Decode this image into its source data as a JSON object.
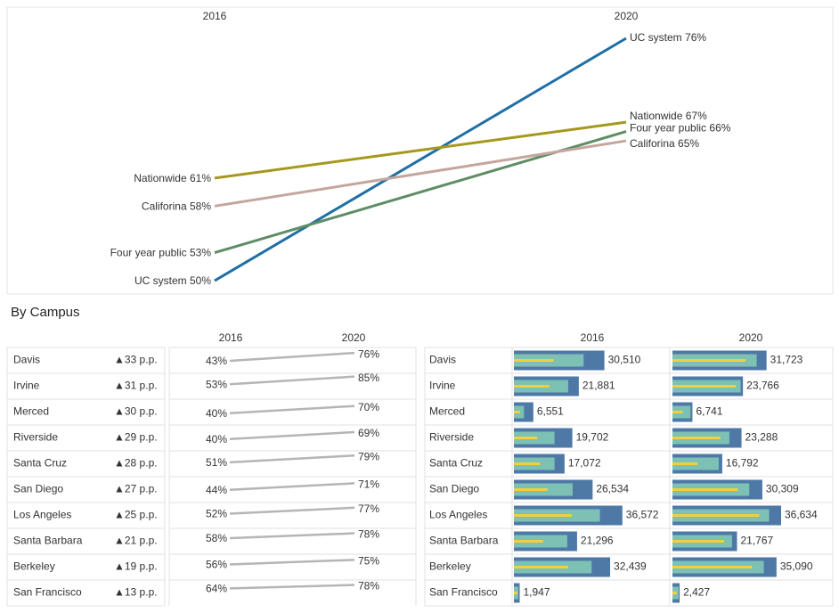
{
  "chart_data": [
    {
      "type": "line",
      "x": [
        "2016",
        "2020"
      ],
      "series": [
        {
          "name": "UC system",
          "color": "#1f6fa5",
          "values": [
            50,
            76
          ],
          "value_labels": [
            "50%",
            "76%"
          ]
        },
        {
          "name": "Nationwide",
          "color": "#a6981c",
          "values": [
            61,
            67
          ],
          "value_labels": [
            "61%",
            "67%"
          ]
        },
        {
          "name": "Four year public",
          "color": "#5e8d66",
          "values": [
            53,
            66
          ],
          "value_labels": [
            "53%",
            "66%"
          ]
        },
        {
          "name": "Califorina",
          "color": "#c4a69e",
          "values": [
            58,
            65
          ],
          "value_labels": [
            "58%",
            "65%"
          ]
        }
      ]
    },
    {
      "type": "slope",
      "title": "By Campus",
      "x": [
        "2016",
        "2020"
      ],
      "color": "#b5b5b5",
      "categories": [
        "Davis",
        "Irvine",
        "Merced",
        "Riverside",
        "Santa Cruz",
        "San Diego",
        "Los Angeles",
        "Santa Barbara",
        "Berkeley",
        "San Francisco"
      ],
      "change": {
        "values": [
          33,
          31,
          30,
          29,
          28,
          27,
          25,
          21,
          19,
          13
        ],
        "value_labels": [
          "▲33 p.p.",
          "▲31 p.p.",
          "▲30 p.p.",
          "▲29 p.p.",
          "▲28 p.p.",
          "▲27 p.p.",
          "▲25 p.p.",
          "▲21 p.p.",
          "▲19 p.p.",
          "▲13 p.p."
        ]
      },
      "series": [
        {
          "values": [
            43,
            53,
            40,
            40,
            51,
            44,
            52,
            58,
            56,
            64
          ],
          "value_labels": [
            "43%",
            "53%",
            "40%",
            "40%",
            "51%",
            "44%",
            "52%",
            "58%",
            "56%",
            "64%"
          ]
        },
        {
          "values": [
            76,
            85,
            70,
            69,
            79,
            71,
            77,
            78,
            75,
            78
          ],
          "value_labels": [
            "76%",
            "85%",
            "70%",
            "69%",
            "79%",
            "71%",
            "77%",
            "78%",
            "75%",
            "78%"
          ]
        }
      ]
    },
    {
      "type": "bullet",
      "x": [
        "2016",
        "2020"
      ],
      "colors": {
        "bar": "#4e79a7",
        "inner": "#7cc1b4",
        "marker": "#f2cf3b"
      },
      "categories": [
        "Davis",
        "Irvine",
        "Merced",
        "Riverside",
        "Santa Cruz",
        "San Diego",
        "Los Angeles",
        "Santa Barbara",
        "Berkeley",
        "San Francisco"
      ],
      "series": [
        {
          "values": [
            30510,
            21881,
            6551,
            19702,
            17072,
            26534,
            36572,
            21296,
            32439,
            1947
          ],
          "value_labels": [
            "30,510",
            "21,881",
            "6,551",
            "19,702",
            "17,072",
            "26,534",
            "36,572",
            "21,296",
            "32,439",
            "1,947"
          ],
          "inner": [
            23500,
            18300,
            3400,
            13700,
            13700,
            19800,
            29000,
            18000,
            26200,
            1500
          ],
          "marker": [
            13400,
            11900,
            2100,
            7900,
            8800,
            11300,
            19500,
            9800,
            18300,
            1200
          ]
        },
        {
          "values": [
            31723,
            23766,
            6741,
            23288,
            16792,
            30309,
            36634,
            21767,
            35090,
            2427
          ],
          "value_labels": [
            "31,723",
            "23,766",
            "6,741",
            "23,288",
            "16,792",
            "30,309",
            "36,634",
            "21,767",
            "35,090",
            "2,427"
          ],
          "inner": [
            28400,
            23000,
            6100,
            19200,
            15600,
            25900,
            32600,
            20100,
            30800,
            2100
          ],
          "marker": [
            24700,
            21400,
            3400,
            16200,
            8500,
            22000,
            29300,
            17400,
            26800,
            1500
          ]
        }
      ]
    }
  ]
}
